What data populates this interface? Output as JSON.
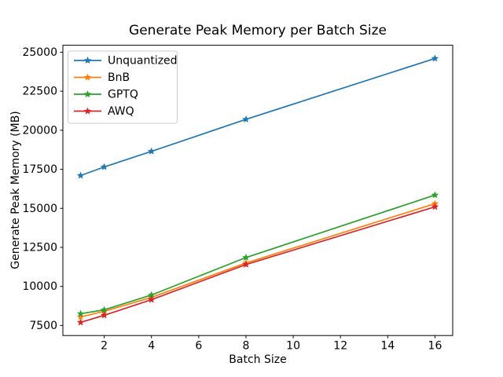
{
  "figure": {
    "background": "#ffffff",
    "axis_color": "#000000",
    "legend_border_color": "#cccccc",
    "legend_fill_color": "#ffffff"
  },
  "chart_data": {
    "type": "line",
    "title": "Generate Peak Memory per Batch Size",
    "xlabel": "Batch Size",
    "ylabel": "Generate Peak Memory (MB)",
    "x": [
      1,
      2,
      4,
      8,
      16
    ],
    "series": [
      {
        "name": "Unquantized",
        "color": "#1f77b4",
        "values": [
          17100,
          17650,
          18650,
          20700,
          24600
        ]
      },
      {
        "name": "BnB",
        "color": "#ff7f0e",
        "values": [
          8050,
          8400,
          9300,
          11500,
          15300
        ]
      },
      {
        "name": "GPTQ",
        "color": "#2ca02c",
        "values": [
          8250,
          8500,
          9450,
          11850,
          15850
        ]
      },
      {
        "name": "AWQ",
        "color": "#d62728",
        "values": [
          7700,
          8150,
          9150,
          11400,
          15100
        ]
      }
    ],
    "xlim": [
      0.25,
      16.75
    ],
    "ylim": [
      6855,
      25445
    ],
    "xticks": [
      "2",
      "4",
      "6",
      "8",
      "10",
      "12",
      "14",
      "16"
    ],
    "yticks": [
      "7500",
      "10000",
      "12500",
      "15000",
      "17500",
      "20000",
      "22500",
      "25000"
    ],
    "marker": "star-marker",
    "grid": false,
    "legend": {
      "position": "upper-left",
      "entries": [
        "Unquantized",
        "BnB",
        "GPTQ",
        "AWQ"
      ]
    }
  }
}
